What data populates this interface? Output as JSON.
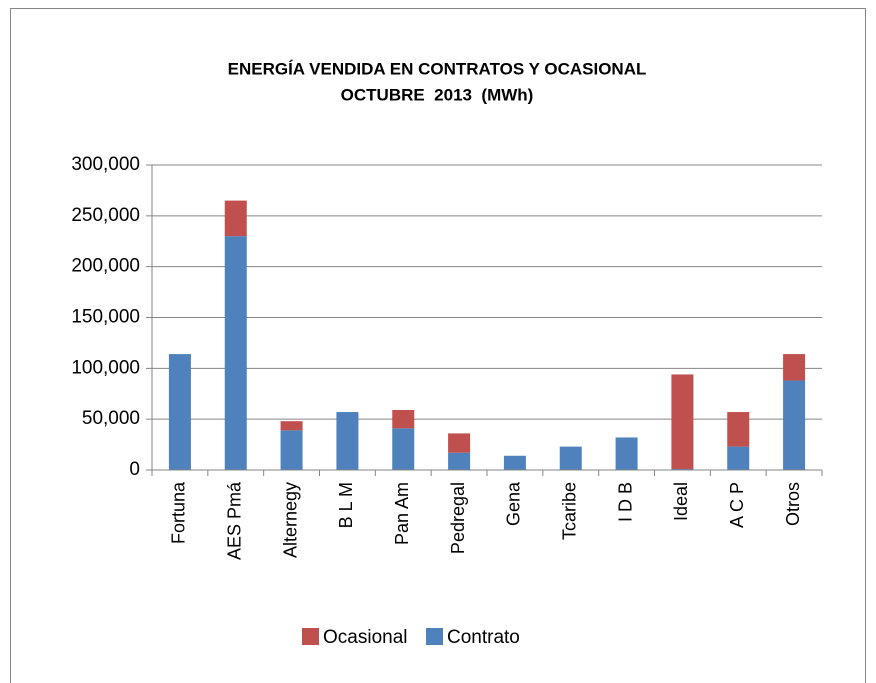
{
  "chart_data": {
    "type": "stacked_bar",
    "title": "ENERGÍA VENDIDA EN CONTRATOS Y OCASIONAL",
    "subtitle": "OCTUBRE  2013  (MWh)",
    "categories": [
      "Fortuna",
      "AES Pmá",
      "Alternegy",
      "B L M",
      "Pan Am",
      "Pedregal",
      "Gena",
      "Tcaribe",
      "I D B",
      "Ideal",
      "A C P",
      "Otros"
    ],
    "series": [
      {
        "name": "Ocasional",
        "color": "#c0504d",
        "values": [
          0,
          35000,
          9000,
          0,
          18000,
          19000,
          0,
          0,
          0,
          93000,
          34000,
          26000
        ]
      },
      {
        "name": "Contrato",
        "color": "#4f81bd",
        "values": [
          114000,
          230000,
          39000,
          57000,
          41000,
          17000,
          14000,
          23000,
          32000,
          1000,
          23000,
          88000
        ]
      }
    ],
    "ylim": [
      0,
      300000
    ],
    "yticks": [
      0,
      {
        "value": 50000,
        "label": "50,000"
      },
      {
        "value": 100000,
        "label": "100,000"
      },
      {
        "value": 150000,
        "label": "150,000"
      },
      {
        "value": 200000,
        "label": "200,000"
      },
      {
        "value": 250000,
        "label": "250,000"
      },
      {
        "value": 300000,
        "label": "300,000"
      }
    ],
    "grid": true,
    "legend": "bottom"
  }
}
